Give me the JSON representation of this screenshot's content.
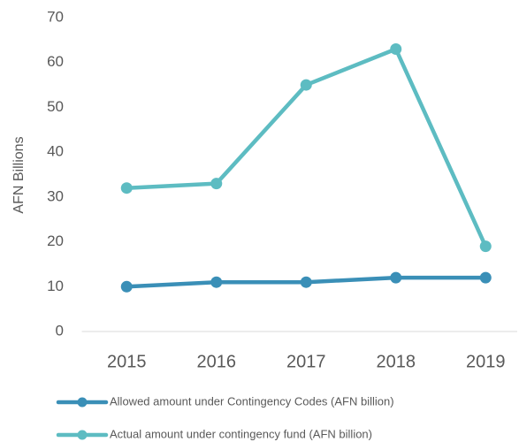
{
  "chart_data": {
    "type": "line",
    "y_label": "AFN Billions",
    "categories": [
      "2015",
      "2016",
      "2017",
      "2018",
      "2019"
    ],
    "series": [
      {
        "name": "Allowed amount under Contingency Codes (AFN billion)",
        "color": "#3a8fb7",
        "values": [
          10,
          11,
          11,
          12,
          12
        ]
      },
      {
        "name": "Actual amount under contingency fund (AFN billion)",
        "color": "#5dbcc2",
        "values": [
          32,
          33,
          55,
          63,
          19
        ]
      }
    ],
    "ylim": [
      0,
      70
    ],
    "yticks": [
      0,
      10,
      20,
      30,
      40,
      50,
      60,
      70
    ],
    "grid": false,
    "legend": "bottom"
  }
}
